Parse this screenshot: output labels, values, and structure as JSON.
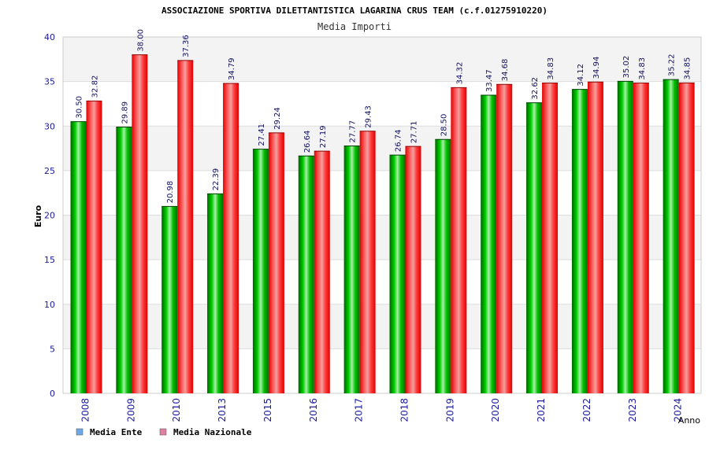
{
  "chart_data": {
    "type": "bar",
    "title": "ASSOCIAZIONE SPORTIVA DILETTANTISTICA LAGARINA CRUS TEAM (c.f.01275910220)",
    "subtitle": "Media Importi",
    "xlabel": "Anno",
    "ylabel": "Euro",
    "ylim": [
      0,
      40
    ],
    "yticks": [
      0,
      5,
      10,
      15,
      20,
      25,
      30,
      35,
      40
    ],
    "grid": true,
    "legend_position": "bottom-left",
    "categories": [
      "2008",
      "2009",
      "2010",
      "2013",
      "2015",
      "2016",
      "2017",
      "2018",
      "2019",
      "2020",
      "2021",
      "2022",
      "2023",
      "2024"
    ],
    "series": [
      {
        "name": "Media Ente",
        "color": "#00b000",
        "legend_color": "#6fa8e8",
        "values": [
          30.5,
          29.89,
          20.98,
          22.39,
          27.41,
          26.64,
          27.77,
          26.74,
          28.5,
          33.47,
          32.62,
          34.12,
          35.02,
          35.22
        ],
        "labels": [
          "30.50",
          "29.89",
          "20.98",
          "22.39",
          "27.41",
          "26.64",
          "27.77",
          "26.74",
          "28.50",
          "33.47",
          "32.62",
          "34.12",
          "35.02",
          "35.22"
        ]
      },
      {
        "name": "Media Nazionale",
        "color": "#ff2020",
        "legend_color": "#e080a0",
        "values": [
          32.82,
          38.0,
          37.36,
          34.79,
          29.24,
          27.19,
          29.43,
          27.71,
          34.32,
          34.68,
          34.83,
          34.94,
          34.83,
          34.85
        ],
        "labels": [
          "32.82",
          "38.00",
          "37.36",
          "34.79",
          "29.24",
          "27.19",
          "29.43",
          "27.71",
          "34.32",
          "34.68",
          "34.83",
          "34.94",
          "34.83",
          "34.85"
        ]
      }
    ]
  }
}
